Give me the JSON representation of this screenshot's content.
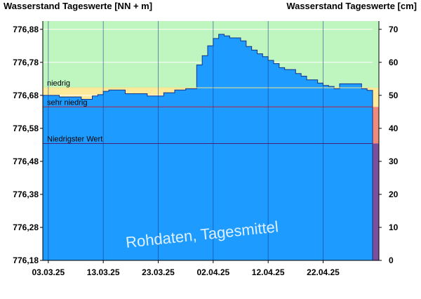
{
  "chart_data": {
    "type": "area",
    "title_left": "Wasserstand Tageswerte [NN + m]",
    "title_right": "Wasserstand Tageswerte [cm]",
    "watermark": "Rohdaten, Tagesmittel",
    "x_tick_labels": [
      "03.03.25",
      "13.03.25",
      "23.03.25",
      "02.04.25",
      "12.04.25",
      "22.04.25"
    ],
    "x_tick_days": [
      1,
      11,
      21,
      31,
      41,
      51
    ],
    "x_range_days": [
      0,
      60
    ],
    "y_left_tick_labels": [
      "776,18",
      "776,28",
      "776,38",
      "776,48",
      "776,58",
      "776,68",
      "776,78",
      "776,88"
    ],
    "y_left_range": [
      776.18,
      776.905
    ],
    "y_right_tick_labels": [
      "0",
      "10",
      "20",
      "30",
      "40",
      "50",
      "60",
      "70"
    ],
    "y_right_range": [
      0,
      72.5
    ],
    "levels": [
      {
        "name": "niedrig",
        "value_cm": 52.3
      },
      {
        "name": "sehr niedrig",
        "value_cm": 46.5
      },
      {
        "name": "Niedrigster Wert",
        "value_cm": 35.4
      }
    ],
    "band_colors": {
      "normal": "#bff5be",
      "niedrig": "#fde99a",
      "sehr_niedrig": "#f08a7c",
      "niedrigster": "#7b4f9b",
      "fill": "#1e9bff",
      "edge": "#13338a"
    },
    "series": [
      {
        "start_day": 0,
        "values_cm": [
          50.0,
          50.0,
          50.0,
          49.5,
          49.5,
          49.5,
          49.5,
          48.8,
          48.8,
          49.8,
          50.2,
          51.2,
          51.6,
          51.6,
          51.6,
          50.5,
          50.5,
          50.5,
          50.5,
          49.8,
          49.8,
          49.8,
          50.8,
          50.8,
          51.6,
          51.6,
          52.0,
          52.0,
          59.2,
          62.0,
          65.0,
          67.2,
          68.5,
          68.0,
          67.4,
          67.4,
          66.5,
          64.8,
          63.7,
          62.6,
          61.7,
          60.6,
          59.6,
          58.4,
          57.8,
          57.8,
          56.6,
          55.8,
          54.7,
          54.7,
          53.7,
          53.0,
          52.7,
          52.0,
          53.5,
          53.5,
          53.5,
          53.5,
          52.0,
          51.5
        ]
      }
    ]
  }
}
